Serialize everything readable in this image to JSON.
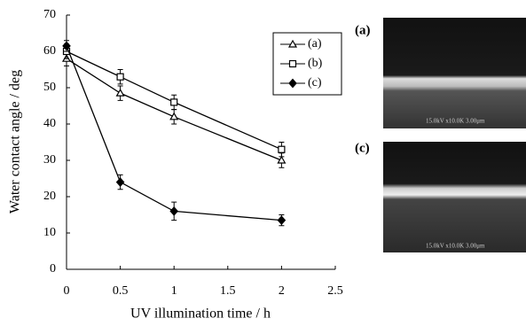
{
  "chart_data": {
    "type": "line",
    "x_label": "UV illumination time / h",
    "y_label": "Water contact angle / deg",
    "xlim": [
      0,
      2.5
    ],
    "xticks": [
      0,
      0.5,
      1,
      1.5,
      2,
      2.5
    ],
    "ylim": [
      0,
      70
    ],
    "yticks": [
      0,
      10,
      20,
      30,
      40,
      50,
      60,
      70
    ],
    "legend": "upper right",
    "x": [
      0,
      0.5,
      1,
      2
    ],
    "series": [
      {
        "name": "(a)",
        "color": "#000000",
        "marker": "triangle",
        "values": [
          58,
          48.5,
          42,
          30
        ],
        "errors": [
          2,
          2,
          2,
          2
        ]
      },
      {
        "name": "(b)",
        "color": "#000000",
        "marker": "square",
        "values": [
          60,
          53,
          46,
          33
        ],
        "errors": [
          2,
          2,
          2,
          2
        ]
      },
      {
        "name": "(c)",
        "color": "#000000",
        "marker": "diamond",
        "values": [
          61.5,
          24,
          16,
          13.5
        ],
        "errors": [
          1.5,
          2,
          2.5,
          1.5
        ]
      }
    ]
  },
  "images": [
    {
      "label": "(a)",
      "caption": "15.0kV x10.0K 3.00μm"
    },
    {
      "label": "(c)",
      "caption": "15.0kV x10.0K 3.00μm"
    }
  ]
}
